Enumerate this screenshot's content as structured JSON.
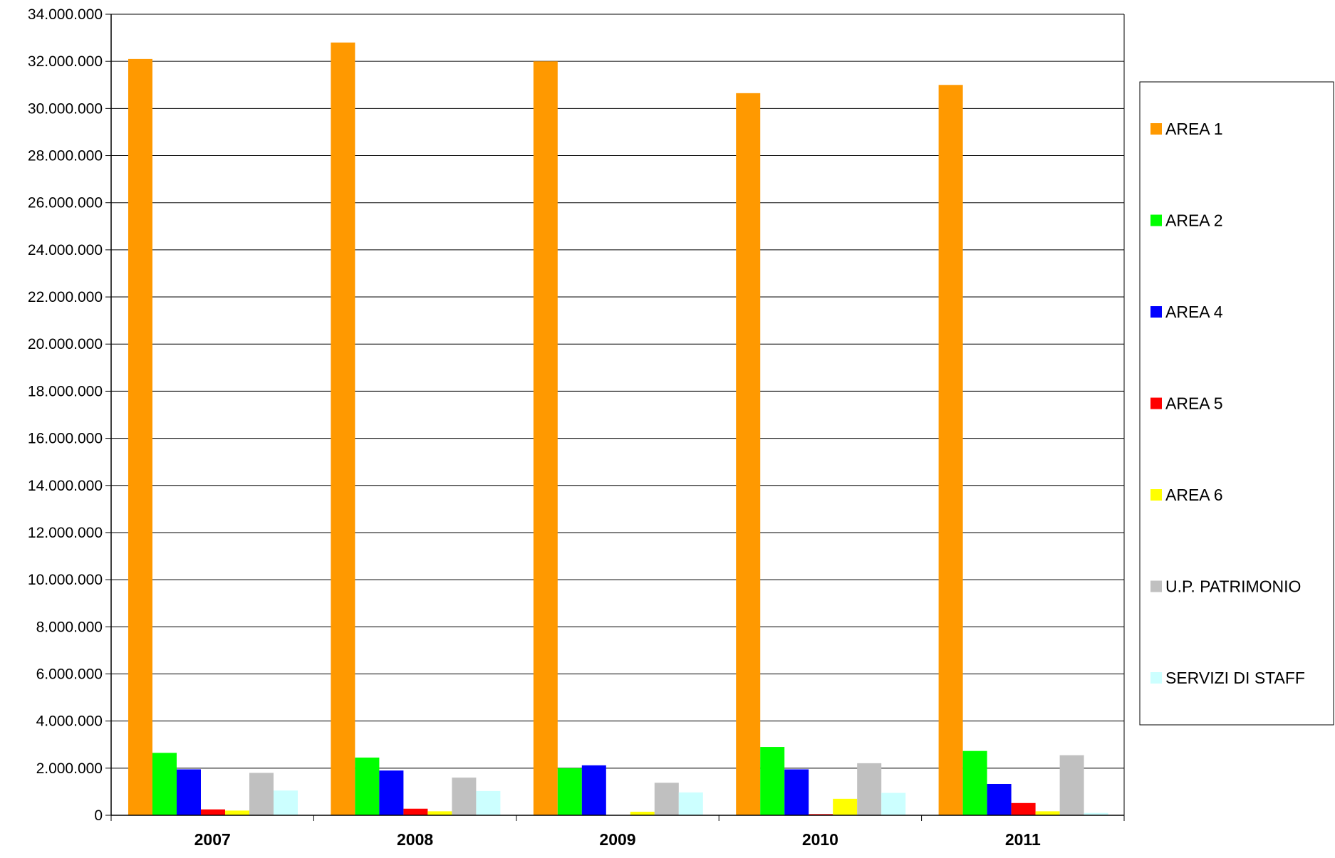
{
  "chart_data": {
    "type": "bar",
    "title": "",
    "xlabel": "",
    "ylabel": "",
    "categories": [
      "2007",
      "2008",
      "2009",
      "2010",
      "2011"
    ],
    "ylim": [
      0,
      34000000
    ],
    "y_ticks": [
      0,
      2000000,
      4000000,
      6000000,
      8000000,
      10000000,
      12000000,
      14000000,
      16000000,
      18000000,
      20000000,
      22000000,
      24000000,
      26000000,
      28000000,
      30000000,
      32000000,
      34000000
    ],
    "y_tick_labels": [
      "0",
      "2.000.000",
      "4.000.000",
      "6.000.000",
      "8.000.000",
      "10.000.000",
      "12.000.000",
      "14.000.000",
      "16.000.000",
      "18.000.000",
      "20.000.000",
      "22.000.000",
      "24.000.000",
      "26.000.000",
      "28.000.000",
      "30.000.000",
      "32.000.000",
      "34.000.000"
    ],
    "grid": "horizontal",
    "legend_position": "right",
    "series": [
      {
        "name": "AREA 1",
        "color": "#FF9900",
        "values": [
          32100000,
          32800000,
          32000000,
          30650000,
          31000000
        ]
      },
      {
        "name": "AREA 2",
        "color": "#00FF00",
        "values": [
          2650000,
          2450000,
          2000000,
          2900000,
          2730000
        ]
      },
      {
        "name": "AREA 4",
        "color": "#0000FF",
        "values": [
          1950000,
          1900000,
          2120000,
          1950000,
          1330000
        ]
      },
      {
        "name": "AREA 5",
        "color": "#FF0000",
        "values": [
          250000,
          280000,
          0,
          50000,
          520000
        ]
      },
      {
        "name": "AREA 6",
        "color": "#FFFF00",
        "values": [
          200000,
          170000,
          150000,
          700000,
          170000
        ]
      },
      {
        "name": "U.P. PATRIMONIO",
        "color": "#C0C0C0",
        "values": [
          1800000,
          1600000,
          1380000,
          2210000,
          2550000
        ]
      },
      {
        "name": "SERVIZI DI STAFF",
        "color": "#CCFFFF",
        "values": [
          1050000,
          1030000,
          970000,
          950000,
          100000
        ]
      }
    ]
  }
}
